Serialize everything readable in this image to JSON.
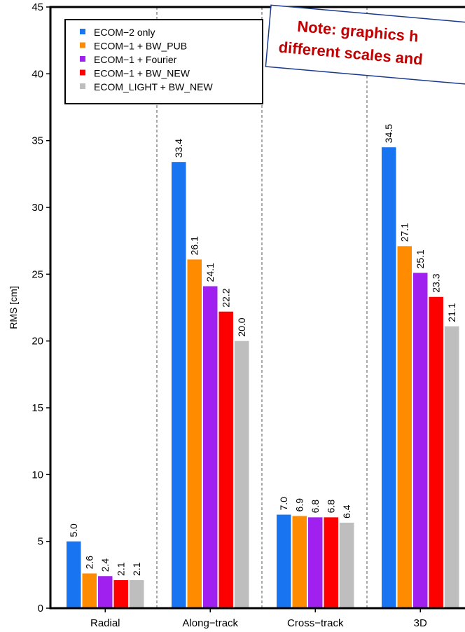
{
  "chart_data": {
    "type": "bar",
    "title": "",
    "xlabel": "",
    "ylabel": "RMS [cm]",
    "ylim": [
      0,
      45
    ],
    "yticks": [
      0,
      5,
      10,
      15,
      20,
      25,
      30,
      35,
      40,
      45
    ],
    "grid": "vertical dashed separators between categories",
    "legend_position": "top-left",
    "categories": [
      "Radial",
      "Along−track",
      "Cross−track",
      "3D"
    ],
    "series": [
      {
        "name": "ECOM−2 only",
        "color": "#1874f0",
        "values": [
          5.0,
          33.4,
          7.0,
          34.5
        ],
        "labels": [
          "5.0",
          "33.4",
          "7.0",
          "34.5"
        ]
      },
      {
        "name": "ECOM−1 + BW_PUB",
        "color": "#ff8c00",
        "values": [
          2.6,
          26.1,
          6.9,
          27.1
        ],
        "labels": [
          "2.6",
          "26.1",
          "6.9",
          "27.1"
        ]
      },
      {
        "name": "ECOM−1 + Fourier",
        "color": "#a020f0",
        "values": [
          2.4,
          24.1,
          6.8,
          25.1
        ],
        "labels": [
          "2.4",
          "24.1",
          "6.8",
          "25.1"
        ]
      },
      {
        "name": "ECOM−1 + BW_NEW",
        "color": "#ff0000",
        "values": [
          2.1,
          22.2,
          6.8,
          23.3
        ],
        "labels": [
          "2.1",
          "22.2",
          "6.8",
          "23.3"
        ]
      },
      {
        "name": "ECOM_LIGHT + BW_NEW",
        "color": "#bebebe",
        "values": [
          2.1,
          20.0,
          6.4,
          21.1
        ],
        "labels": [
          "2.1",
          "20.0",
          "6.4",
          "21.1"
        ]
      }
    ],
    "annotation": {
      "lines": [
        "Note: graphics h",
        "different scales and"
      ],
      "text_color": "#c00000",
      "border_color": "#1a3a8c"
    }
  }
}
